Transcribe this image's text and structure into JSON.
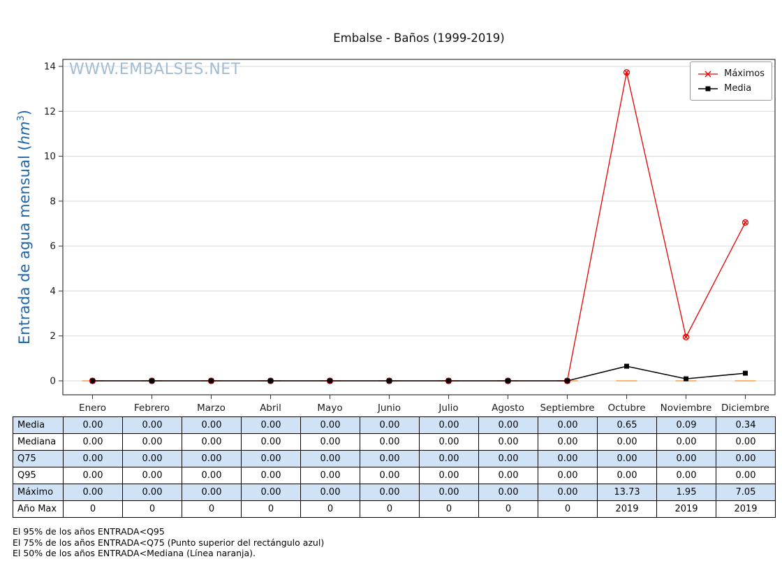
{
  "page": {
    "title": "Embalse - Baños (1999-2019)",
    "watermark": "WWW.EMBALSES.NET"
  },
  "axis": {
    "ylabel_prefix": "Entrada de agua mensual (",
    "ylabel_unit": "hm",
    "ylabel_exponent": "3",
    "ylabel_suffix": ")"
  },
  "legend": [
    {
      "label": "Máximos",
      "marker": "x-cross",
      "color": "#e60000"
    },
    {
      "label": "Media",
      "marker": "filled-square",
      "color": "#000000"
    }
  ],
  "chart_data": {
    "type": "line",
    "title": "Embalse - Baños (1999-2019)",
    "ylabel": "Entrada de agua mensual (hm³)",
    "categories": [
      "Enero",
      "Febrero",
      "Marzo",
      "Abril",
      "Mayo",
      "Junio",
      "Julio",
      "Agosto",
      "Septiembre",
      "Octubre",
      "Noviembre",
      "Diciembre"
    ],
    "series": [
      {
        "name": "Máximos",
        "color": "#e60000",
        "marker": "circle-x",
        "values": [
          0,
          0,
          0,
          0,
          0,
          0,
          0,
          0,
          0,
          13.73,
          1.95,
          7.05
        ]
      },
      {
        "name": "Media",
        "color": "#000000",
        "marker": "square",
        "values": [
          0,
          0,
          0,
          0,
          0,
          0,
          0,
          0,
          0,
          0.65,
          0.09,
          0.34
        ]
      },
      {
        "name": "Mediana",
        "color": "#ffa85c",
        "marker": "horizontal-dash",
        "values": [
          0,
          0,
          0,
          0,
          0,
          0,
          0,
          0,
          0,
          0,
          0,
          0
        ]
      }
    ],
    "yticks": [
      0,
      2,
      4,
      6,
      8,
      10,
      12,
      14
    ],
    "ylim": [
      -0.62,
      14.31
    ],
    "grid": "horizontal",
    "legend_position": "upper right"
  },
  "table": {
    "highlight_color": "#cfe2f6",
    "rows": [
      {
        "label": "Media",
        "values": [
          "0.00",
          "0.00",
          "0.00",
          "0.00",
          "0.00",
          "0.00",
          "0.00",
          "0.00",
          "0.00",
          "0.65",
          "0.09",
          "0.34"
        ]
      },
      {
        "label": "Mediana",
        "values": [
          "0.00",
          "0.00",
          "0.00",
          "0.00",
          "0.00",
          "0.00",
          "0.00",
          "0.00",
          "0.00",
          "0.00",
          "0.00",
          "0.00"
        ]
      },
      {
        "label": "Q75",
        "values": [
          "0.00",
          "0.00",
          "0.00",
          "0.00",
          "0.00",
          "0.00",
          "0.00",
          "0.00",
          "0.00",
          "0.00",
          "0.00",
          "0.00"
        ]
      },
      {
        "label": "Q95",
        "values": [
          "0.00",
          "0.00",
          "0.00",
          "0.00",
          "0.00",
          "0.00",
          "0.00",
          "0.00",
          "0.00",
          "0.00",
          "0.00",
          "0.00"
        ]
      },
      {
        "label": "Máximo",
        "values": [
          "0.00",
          "0.00",
          "0.00",
          "0.00",
          "0.00",
          "0.00",
          "0.00",
          "0.00",
          "0.00",
          "13.73",
          "1.95",
          "7.05"
        ]
      },
      {
        "label": "Año Max",
        "values": [
          "0",
          "0",
          "0",
          "0",
          "0",
          "0",
          "0",
          "0",
          "0",
          "2019",
          "2019",
          "2019"
        ]
      }
    ]
  },
  "footnotes": [
    "El 95% de los años ENTRADA<Q95",
    "El 75% de los años ENTRADA<Q75 (Punto superior del rectángulo azul)",
    "El 50% de los años ENTRADA<Mediana (Línea naranja)."
  ]
}
